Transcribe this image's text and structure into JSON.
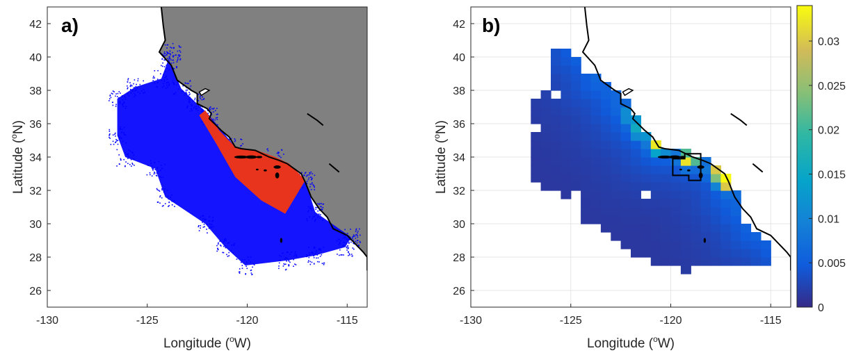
{
  "chart_data": [
    {
      "type": "scatter",
      "panel_label": "a)",
      "xlabel": "Longitude (",
      "xlabel_sup": "o",
      "xlabel_suffix": "W)",
      "ylabel": "Latitude (",
      "ylabel_sup": "o",
      "ylabel_suffix": "N)",
      "xlim": [
        -130,
        -114
      ],
      "ylim": [
        25,
        43
      ],
      "xticks": [
        "-130",
        "-125",
        "-120",
        "-115"
      ],
      "yticks": [
        "26",
        "28",
        "30",
        "32",
        "34",
        "36",
        "38",
        "40",
        "42"
      ],
      "grid": false,
      "colors": {
        "land": "#808080",
        "particles": "#0000ff",
        "region": "#e8341c",
        "coast": "#000000"
      },
      "region_polygon": [
        [
          -122.4,
          36.5
        ],
        [
          -122.1,
          36.8
        ],
        [
          -121.4,
          35.6
        ],
        [
          -120.6,
          34.6
        ],
        [
          -119.5,
          34.4
        ],
        [
          -118.6,
          34.0
        ],
        [
          -117.9,
          33.6
        ],
        [
          -117.4,
          33.0
        ],
        [
          -117.1,
          32.6
        ],
        [
          -118.1,
          30.6
        ],
        [
          -119.3,
          31.4
        ],
        [
          -120.6,
          32.8
        ],
        [
          -121.6,
          34.9
        ]
      ],
      "particle_envelope": [
        [
          -123.8,
          40.3
        ],
        [
          -124.3,
          38.7
        ],
        [
          -125.6,
          38.2
        ],
        [
          -126.5,
          37.5
        ],
        [
          -126.5,
          35.3
        ],
        [
          -126.1,
          34.0
        ],
        [
          -124.6,
          33.3
        ],
        [
          -124.1,
          31.6
        ],
        [
          -122.1,
          30.0
        ],
        [
          -121.1,
          28.6
        ],
        [
          -120.1,
          27.5
        ],
        [
          -118.0,
          27.8
        ],
        [
          -116.6,
          28.1
        ],
        [
          -115.1,
          28.6
        ],
        [
          -114.8,
          29.2
        ],
        [
          -116.6,
          30.7
        ],
        [
          -117.1,
          32.6
        ],
        [
          -118.6,
          34.0
        ],
        [
          -120.6,
          34.6
        ],
        [
          -121.9,
          36.5
        ],
        [
          -122.6,
          37.3
        ],
        [
          -123.3,
          38.1
        ],
        [
          -123.9,
          39.8
        ]
      ]
    },
    {
      "type": "heatmap",
      "panel_label": "b)",
      "xlabel": "Longitude (",
      "xlabel_sup": "o",
      "xlabel_suffix": "W)",
      "ylabel": "Latitude (",
      "ylabel_sup": "o",
      "ylabel_suffix": "N)",
      "xlim": [
        -130,
        -114
      ],
      "ylim": [
        25,
        43
      ],
      "xticks": [
        "-130",
        "-125",
        "-120",
        "-115"
      ],
      "yticks": [
        "26",
        "28",
        "30",
        "32",
        "34",
        "36",
        "38",
        "40",
        "42"
      ],
      "grid": true,
      "cell_size_deg": 0.5,
      "colorbar": {
        "min": 0,
        "max": 0.034,
        "ticks": [
          "0",
          "0.005",
          "0.01",
          "0.015",
          "0.02",
          "0.025",
          "0.03"
        ]
      },
      "colormap": "parula",
      "colors": {
        "land": "#ffffff",
        "coast": "#000000"
      },
      "footprint": [
        [
          -125.9,
          40.3
        ],
        [
          -124.9,
          40.3
        ],
        [
          -124.5,
          39.4
        ],
        [
          -123.9,
          38.9
        ],
        [
          -123.0,
          38.5
        ],
        [
          -122.5,
          37.8
        ],
        [
          -121.9,
          36.6
        ],
        [
          -121.0,
          35.4
        ],
        [
          -120.5,
          34.6
        ],
        [
          -119.0,
          34.2
        ],
        [
          -118.0,
          33.7
        ],
        [
          -117.2,
          32.7
        ],
        [
          -116.6,
          31.5
        ],
        [
          -116.2,
          30.0
        ],
        [
          -115.2,
          28.8
        ],
        [
          -115.2,
          27.7
        ],
        [
          -116.5,
          27.7
        ],
        [
          -117.6,
          27.4
        ],
        [
          -118.9,
          27.1
        ],
        [
          -120.9,
          27.6
        ],
        [
          -122.3,
          28.5
        ],
        [
          -123.4,
          29.6
        ],
        [
          -124.6,
          30.5
        ],
        [
          -124.7,
          31.3
        ],
        [
          -126.1,
          32.1
        ],
        [
          -127.0,
          33.0
        ],
        [
          -127.0,
          34.5
        ],
        [
          -126.7,
          35.5
        ],
        [
          -126.9,
          37.5
        ],
        [
          -126.0,
          38.3
        ],
        [
          -125.9,
          39.4
        ]
      ],
      "holes": [
        [
          -125.9,
          37.9
        ],
        [
          -121.4,
          31.9
        ],
        [
          -124.9,
          31.9
        ],
        [
          -118.9,
          27.4
        ]
      ],
      "hotspots": [
        {
          "lon": -119.1,
          "lat": 33.9,
          "value": 0.034
        },
        {
          "lon": -117.6,
          "lat": 33.1,
          "value": 0.031
        },
        {
          "lon": -117.2,
          "lat": 32.5,
          "value": 0.034
        },
        {
          "lon": -120.6,
          "lat": 34.7,
          "value": 0.03
        },
        {
          "lon": -121.5,
          "lat": 35.6,
          "value": 0.016
        },
        {
          "lon": -122.0,
          "lat": 36.5,
          "value": 0.01
        }
      ],
      "base_value": 0.0012,
      "outlined_box": [
        [
          -119.9,
          33.9
        ],
        [
          -119.3,
          33.9
        ],
        [
          -119.3,
          34.2
        ],
        [
          -118.5,
          34.2
        ],
        [
          -118.5,
          32.6
        ],
        [
          -119.1,
          32.6
        ],
        [
          -119.1,
          32.9
        ],
        [
          -119.9,
          32.9
        ]
      ]
    }
  ]
}
